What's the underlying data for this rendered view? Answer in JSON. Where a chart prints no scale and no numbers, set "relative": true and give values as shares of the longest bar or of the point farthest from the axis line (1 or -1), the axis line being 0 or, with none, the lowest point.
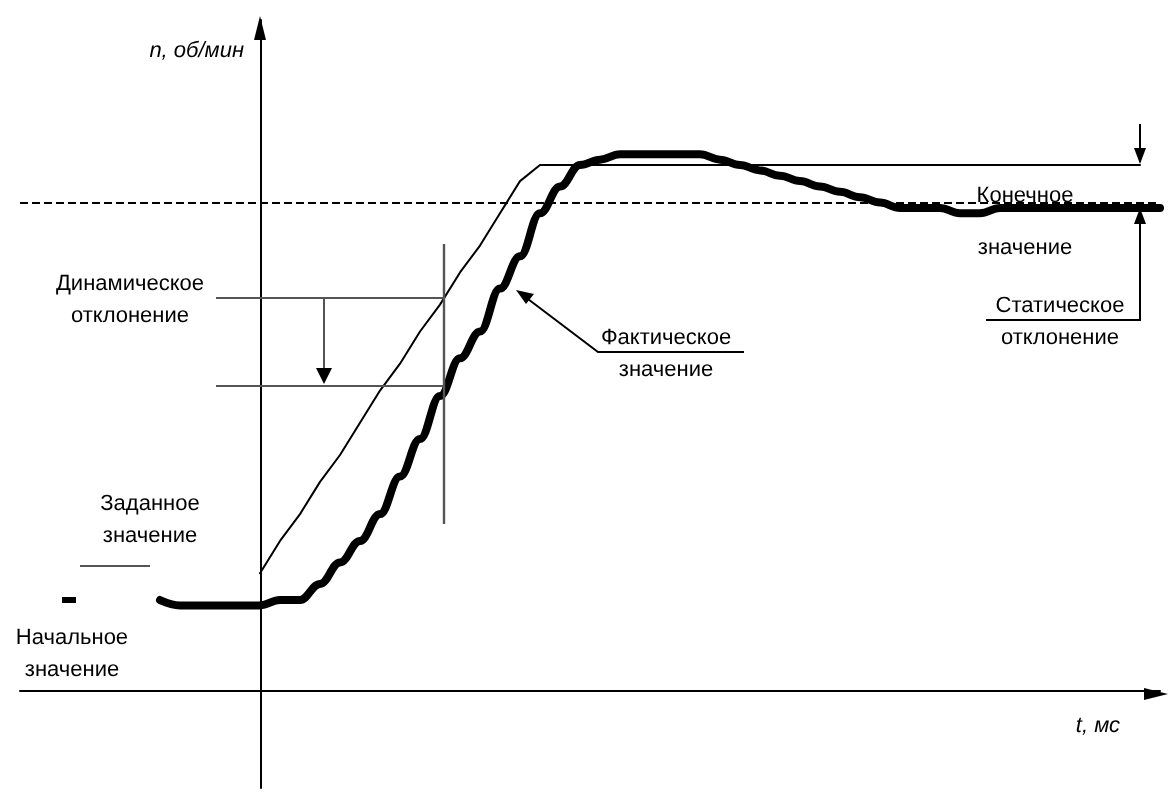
{
  "chart_data": {
    "type": "line",
    "relative": true,
    "xlabel": "t, мс",
    "ylabel": "n, об/мин",
    "marker": "none",
    "line_style": "solid",
    "categories": [
      null,
      null,
      null,
      null,
      null,
      null,
      null,
      null,
      null,
      null,
      null,
      null,
      null,
      null,
      null,
      null,
      null,
      null,
      null,
      null,
      null,
      null,
      null,
      null,
      null,
      null,
      null,
      null,
      null,
      null,
      null,
      null,
      null,
      null,
      null,
      null,
      null,
      null,
      null,
      null,
      null,
      null,
      null,
      null,
      null,
      null,
      null,
      null,
      null,
      null,
      null,
      null,
      null,
      null,
      null,
      null,
      null,
      null
    ],
    "series": [
      {
        "color": "#000000",
        "values": [
          null,
          null,
          null,
          null,
          null,
          null,
          null,
          0.17,
          0.16,
          0.16,
          0.16,
          0.16,
          0.16,
          0.17,
          0.17,
          0.2,
          0.24,
          0.28,
          0.33,
          0.4,
          0.47,
          0.55,
          0.62,
          0.67,
          0.75,
          0.81,
          0.89,
          0.94,
          0.98,
          0.99,
          1,
          1,
          1,
          1,
          1,
          0.99,
          0.98,
          0.97,
          0.96,
          0.95,
          0.94,
          0.93,
          0.92,
          0.91,
          0.9,
          0.9,
          0.9,
          0.89,
          0.89,
          0.9,
          0.9,
          0.9,
          0.9,
          0.9,
          0.9,
          0.9,
          0.9,
          0.9
        ]
      },
      {
        "color": "#000000",
        "values": [
          null,
          null,
          null,
          null,
          null,
          null,
          null,
          null,
          null,
          null,
          null,
          null,
          0.22,
          0.28,
          0.33,
          0.39,
          0.44,
          0.5,
          0.56,
          0.61,
          0.67,
          0.72,
          0.78,
          0.83,
          0.89,
          0.95,
          0.98,
          0.98,
          0.98,
          0.98,
          0.98,
          0.98,
          0.98,
          0.98,
          0.98,
          0.98,
          0.98,
          0.98,
          0.98,
          0.98,
          0.98,
          0.98,
          0.98,
          0.98,
          0.98,
          0.98,
          0.98,
          0.98,
          0.98,
          0.98,
          0.98,
          0.98,
          0.98,
          0.98,
          0.98,
          0.98,
          0.98,
          null
        ]
      }
    ],
    "ref_lines": [
      {
        "axis": "y",
        "value": 0.91,
        "label": null,
        "color": "#000000",
        "line_style": "dashed"
      }
    ],
    "annotations": [
      "Динамическое отклонение",
      "Заданное значение",
      "Начальное значение",
      "Фактическое значение",
      "Конечное значение",
      "Статическое отклонение"
    ]
  }
}
